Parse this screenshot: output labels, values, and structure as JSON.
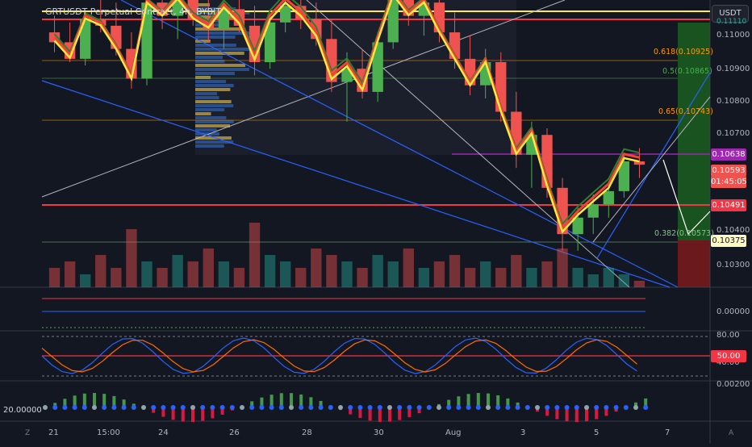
{
  "header": {
    "title": "GRTUSDT Perpetual Contract, 4h, BYBIT",
    "currency": "USDT"
  },
  "price_axis": {
    "ticks": [
      "0.11000",
      "0.10900",
      "0.10800",
      "0.10700",
      "0.10400",
      "0.10300"
    ],
    "current_price": "0.10593",
    "countdown": "01:45:05",
    "level_markers": [
      "0.10638",
      "0.10491",
      "0.10375"
    ],
    "top_cut_label": "0.11110"
  },
  "fib_levels": [
    {
      "text": "0.618(0.10925)",
      "color": "#ff9800"
    },
    {
      "text": "0.5(0.10865)",
      "color": "#4caf50"
    },
    {
      "text": "0.65(0.10743)",
      "color": "#ff9800"
    },
    {
      "text": "0.382(0.10573)",
      "color": "#81c784"
    }
  ],
  "indicators": {
    "osc_tick": "0.00000",
    "stoch_ticks": [
      "80.00",
      "40.00"
    ],
    "stoch_level": "50.00",
    "momentum_tick": "0.00200",
    "momentum_left_value": "20.00000"
  },
  "time_axis": {
    "labels": [
      "21",
      "15:00",
      "24",
      "26",
      "28",
      "30",
      "Aug",
      "3",
      "5",
      "7"
    ],
    "left_badge": "Z",
    "right_badge": "A"
  },
  "colors": {
    "up": "#26a69a",
    "candle_up": "#4caf50",
    "down": "#ef5350",
    "ma_yellow": "#ffeb3b",
    "ma_red": "#f44336",
    "ma_green": "#2e7d32",
    "trend_blue": "#2962ff",
    "level_red": "#f23645"
  },
  "chart_data": {
    "type": "candlestick",
    "symbol": "GRTUSDT",
    "interval": "4h",
    "exchange": "BYBIT",
    "ylim": [
      0.1022,
      0.1114
    ],
    "horizontal_levels": [
      0.1111,
      0.10638,
      0.10491,
      0.10375
    ],
    "last_close": 0.10593,
    "candles_ohlc_approx": [
      [
        0.1099,
        0.1104,
        0.1093,
        0.1096
      ],
      [
        0.1096,
        0.1102,
        0.109,
        0.1091
      ],
      [
        0.1091,
        0.1105,
        0.1089,
        0.1103
      ],
      [
        0.1103,
        0.111,
        0.1099,
        0.1101
      ],
      [
        0.1101,
        0.1108,
        0.1092,
        0.1094
      ],
      [
        0.1094,
        0.1099,
        0.1082,
        0.1085
      ],
      [
        0.1085,
        0.111,
        0.1083,
        0.1108
      ],
      [
        0.1108,
        0.1113,
        0.11,
        0.1104
      ],
      [
        0.1104,
        0.1112,
        0.1097,
        0.1109
      ],
      [
        0.1109,
        0.1113,
        0.1101,
        0.1103
      ],
      [
        0.1103,
        0.1111,
        0.1096,
        0.11
      ],
      [
        0.11,
        0.1108,
        0.1094,
        0.1106
      ],
      [
        0.1106,
        0.1112,
        0.1099,
        0.1101
      ],
      [
        0.1101,
        0.1107,
        0.1086,
        0.109
      ],
      [
        0.109,
        0.1104,
        0.1088,
        0.1102
      ],
      [
        0.1102,
        0.111,
        0.1099,
        0.1107
      ],
      [
        0.1107,
        0.1112,
        0.11,
        0.1103
      ],
      [
        0.1103,
        0.1108,
        0.1095,
        0.1097
      ],
      [
        0.1097,
        0.1103,
        0.1081,
        0.1084
      ],
      [
        0.1084,
        0.1093,
        0.1072,
        0.1088
      ],
      [
        0.1088,
        0.1094,
        0.1079,
        0.1081
      ],
      [
        0.1081,
        0.1099,
        0.1078,
        0.1096
      ],
      [
        0.1096,
        0.1113,
        0.1094,
        0.111
      ],
      [
        0.111,
        0.1113,
        0.1101,
        0.1104
      ],
      [
        0.1104,
        0.1112,
        0.1098,
        0.1108
      ],
      [
        0.1108,
        0.1112,
        0.1096,
        0.1099
      ],
      [
        0.1099,
        0.1105,
        0.1088,
        0.1091
      ],
      [
        0.1091,
        0.1098,
        0.108,
        0.1083
      ],
      [
        0.1083,
        0.1094,
        0.1079,
        0.109
      ],
      [
        0.109,
        0.1093,
        0.1072,
        0.1075
      ],
      [
        0.1075,
        0.1081,
        0.1058,
        0.1062
      ],
      [
        0.1062,
        0.1072,
        0.1052,
        0.1068
      ],
      [
        0.1068,
        0.107,
        0.1049,
        0.1052
      ],
      [
        0.1052,
        0.1055,
        0.1033,
        0.1038
      ],
      [
        0.1038,
        0.1046,
        0.1033,
        0.1043
      ],
      [
        0.1043,
        0.105,
        0.1038,
        0.1047
      ],
      [
        0.1047,
        0.1054,
        0.1043,
        0.1051
      ],
      [
        0.1051,
        0.1062,
        0.1049,
        0.106
      ],
      [
        0.106,
        0.1064,
        0.1055,
        0.1059
      ]
    ],
    "volume_relative": [
      0.3,
      0.4,
      0.2,
      0.5,
      0.3,
      0.9,
      0.4,
      0.3,
      0.5,
      0.4,
      0.6,
      0.4,
      0.3,
      1.0,
      0.5,
      0.4,
      0.3,
      0.6,
      0.5,
      0.4,
      0.3,
      0.5,
      0.4,
      0.6,
      0.3,
      0.4,
      0.5,
      0.3,
      0.4,
      0.3,
      0.5,
      0.3,
      0.4,
      0.6,
      0.3,
      0.2,
      0.3,
      0.2,
      0.1
    ],
    "stoch_levels": [
      80,
      50,
      40
    ]
  }
}
